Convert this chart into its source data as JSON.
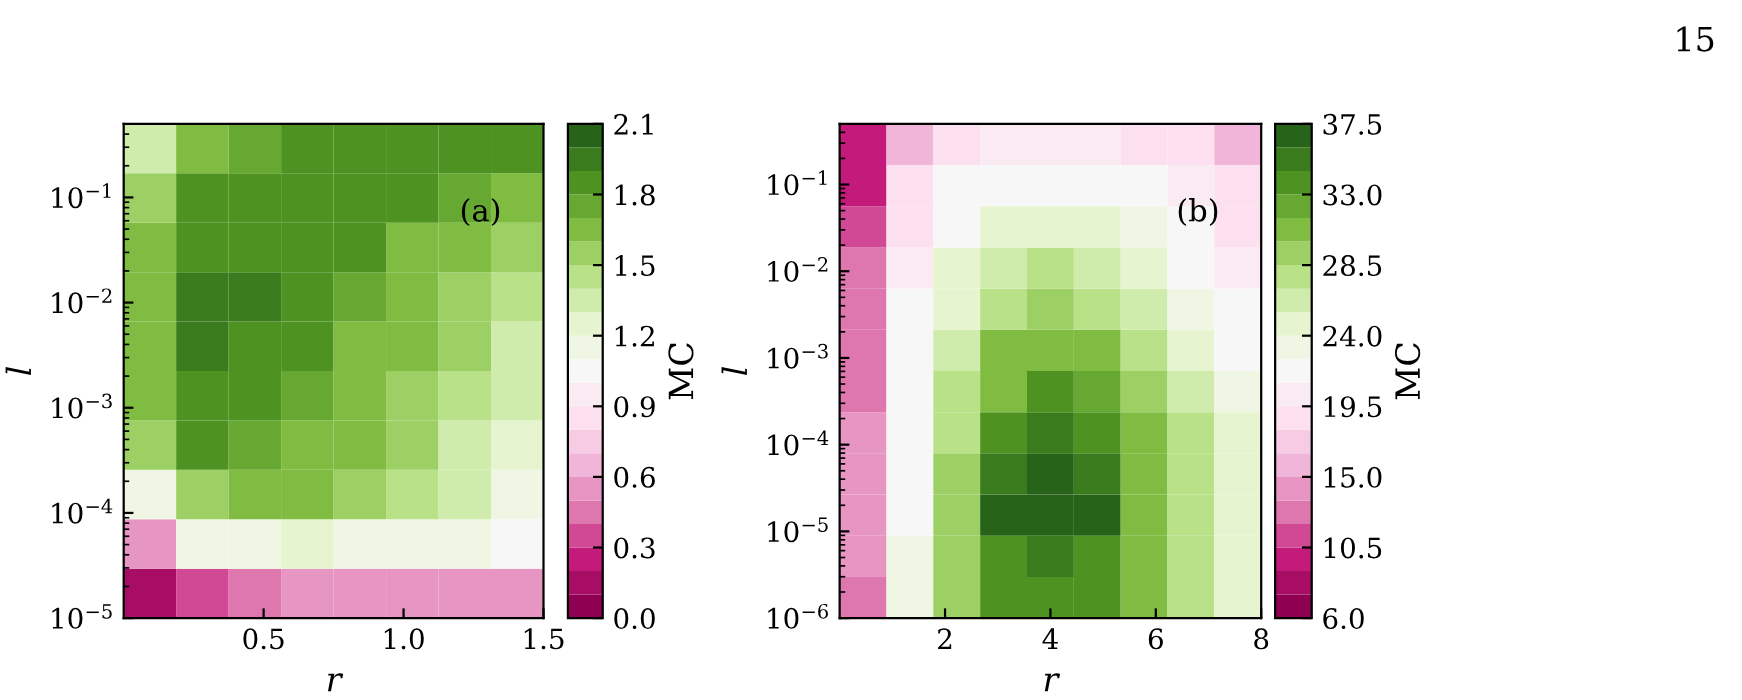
{
  "chart_data": [
    {
      "type": "heatmap",
      "xlabel": "r",
      "ylabel": "l",
      "clabel": "MC",
      "log": "y",
      "annotations": [
        "(a)"
      ],
      "cells": [
        [
          1.3,
          1.6,
          1.75,
          1.8,
          1.8,
          1.8,
          1.8,
          1.8
        ],
        [
          1.5,
          1.8,
          1.85,
          1.85,
          1.85,
          1.8,
          1.75,
          1.7
        ],
        [
          1.6,
          1.9,
          1.9,
          1.85,
          1.8,
          1.7,
          1.65,
          1.55
        ],
        [
          1.6,
          1.95,
          1.95,
          1.85,
          1.75,
          1.65,
          1.55,
          1.45
        ],
        [
          1.6,
          1.95,
          1.9,
          1.8,
          1.7,
          1.6,
          1.5,
          1.4
        ],
        [
          1.6,
          1.9,
          1.85,
          1.75,
          1.65,
          1.55,
          1.45,
          1.3
        ],
        [
          1.5,
          1.8,
          1.75,
          1.7,
          1.6,
          1.5,
          1.35,
          1.25
        ],
        [
          1.1,
          1.55,
          1.6,
          1.6,
          1.55,
          1.45,
          1.3,
          1.2
        ],
        [
          0.6,
          1.1,
          1.2,
          1.25,
          1.2,
          1.15,
          1.1,
          1.05
        ],
        [
          0.15,
          0.35,
          0.45,
          0.5,
          0.5,
          0.5,
          0.5,
          0.5
        ]
      ],
      "xlim": [
        0,
        1.5
      ],
      "xticks": [
        0.5,
        {
          "value": 1,
          "label": "1.0"
        },
        1.5
      ],
      "ylim": [
        1e-05,
        0.5
      ],
      "yticks": [
        {
          "value": 1e-05,
          "label": "10$^{−5}$"
        },
        {
          "value": 0.0001,
          "label": "10$^{−4}$"
        },
        {
          "value": 0.001,
          "label": "10$^{−3}$"
        },
        {
          "value": 0.01,
          "label": "10$^{−2}$"
        },
        {
          "value": 0.1,
          "label": "10$^{−1}$"
        }
      ],
      "clim": [
        0,
        2.1
      ],
      "cticks": [
        {
          "value": 0,
          "label": "0.0"
        },
        0.3,
        0.6,
        0.9,
        1.2,
        1.5,
        1.8,
        2.1
      ]
    },
    {
      "type": "heatmap",
      "xlabel": "r",
      "ylabel": "l",
      "clabel": "MC",
      "log": "y",
      "annotations": [
        "(b)",
        "15"
      ],
      "cells": [
        [
          9,
          16,
          19,
          20,
          20,
          20,
          19,
          18,
          16
        ],
        [
          10,
          18,
          21,
          22,
          22,
          22,
          21,
          20,
          18
        ],
        [
          11,
          19,
          22,
          24,
          25,
          24,
          23,
          21,
          19
        ],
        [
          12,
          20,
          24,
          26,
          27,
          26,
          24,
          22,
          20
        ],
        [
          12,
          21,
          25,
          28,
          29,
          28,
          26,
          23,
          21
        ],
        [
          13,
          21,
          26,
          30,
          31,
          30,
          27,
          25,
          22
        ],
        [
          13,
          22,
          27,
          31,
          33,
          32,
          29,
          26,
          23
        ],
        [
          14,
          22,
          28,
          33,
          35,
          34,
          30,
          27,
          24
        ],
        [
          14,
          22,
          29,
          35,
          37,
          35,
          31,
          28,
          24
        ],
        [
          14,
          22,
          29,
          36,
          37,
          36,
          31,
          28,
          25
        ],
        [
          14,
          23,
          29,
          34,
          35,
          34,
          31,
          28,
          25
        ],
        [
          13,
          23,
          29,
          33,
          34,
          33,
          31,
          28,
          25
        ]
      ],
      "xlim": [
        0,
        8
      ],
      "xticks": [
        2,
        4,
        6,
        8
      ],
      "ylim": [
        1e-06,
        0.5
      ],
      "yticks": [
        {
          "value": 1e-06,
          "label": "10$^{−6}$"
        },
        {
          "value": 1e-05,
          "label": "10$^{−5}$"
        },
        {
          "value": 0.0001,
          "label": "10$^{−4}$"
        },
        {
          "value": 0.001,
          "label": "10$^{−3}$"
        },
        {
          "value": 0.01,
          "label": "10$^{−2}$"
        },
        {
          "value": 0.1,
          "label": "10$^{−1}$"
        }
      ],
      "clim": [
        6,
        37.5
      ],
      "cticks": [
        {
          "value": 6,
          "label": "6.0"
        },
        10.5,
        {
          "value": 15,
          "label": "15.0"
        },
        19.5,
        {
          "value": 24,
          "label": "24.0"
        },
        28.5,
        {
          "value": 33,
          "label": "33.0"
        },
        37.5
      ]
    }
  ]
}
